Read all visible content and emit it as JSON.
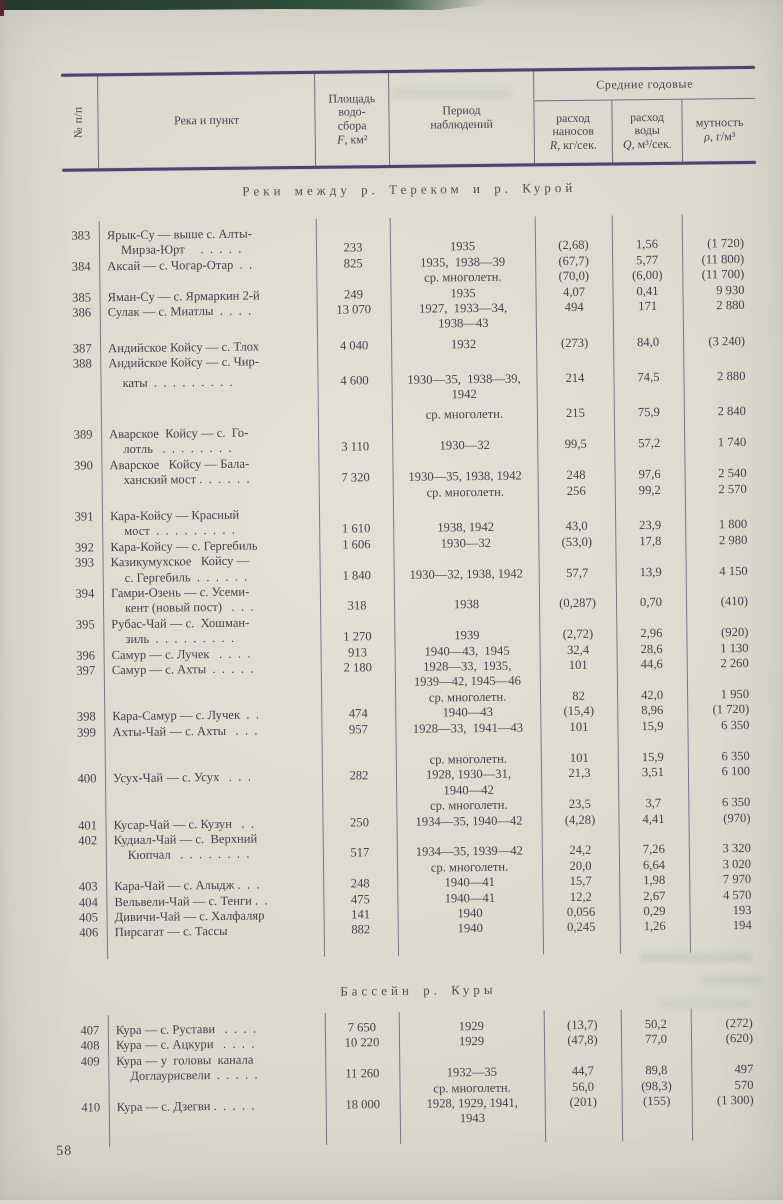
{
  "page": {
    "number": "58"
  },
  "colors": {
    "paper": "#dcdacf",
    "ink": "#45404e",
    "rule": "#4e4173",
    "scan_band": "#2c4a39"
  },
  "table": {
    "header": {
      "col_num": "№ п/п",
      "col_river": "Река и пункт",
      "col_area_lines": [
        "Площадь",
        "водо-",
        "сбора"
      ],
      "col_area_letter": "F",
      "col_area_rest": ", км²",
      "col_period_lines": [
        "Период",
        "наблюдений"
      ],
      "group_label": "Средние годовые",
      "col_r_lines": [
        "расход",
        "наносов"
      ],
      "col_r_letter": "R",
      "col_r_rest": ", кг/сек.",
      "col_q_lines": [
        "расход",
        "воды"
      ],
      "col_q_letter": "Q",
      "col_q_rest": ", м³/сек.",
      "col_m_line": "мутность",
      "col_m_letter": "ρ",
      "col_m_rest": ", г/м³"
    },
    "sections": [
      {
        "heading": "Реки между р. Тереком и р. Курой",
        "lines": [
          {
            "n": "383",
            "name": "Ярык-Су — выше с. Алты-"
          },
          {
            "ind": 1,
            "name": "Мирза-Юрт     .  .  .  .  .",
            "f": "233",
            "p": "1935",
            "r": "(2,68)",
            "q": "1,56",
            "m": "(1 720)"
          },
          {
            "n": "384",
            "name": "Аксай — с. Чогар-Отар  .  .",
            "f": "825",
            "p": "1935,  1938—39",
            "r": "(67,7)",
            "q": "5,77",
            "m": "(11 800)"
          },
          {
            "p": "ср. многолетн.",
            "r": "(70,0)",
            "q": "(6,00)",
            "m": "(11 700)"
          },
          {
            "n": "385",
            "name": "Яман-Су — с. Ярмаркин 2-й",
            "f": "249",
            "p": "1935",
            "r": "4,07",
            "q": "0,41",
            "m": "9 930"
          },
          {
            "n": "386",
            "name": "Сулак — с. Миатлы  .  .  .  .",
            "f": "13 070",
            "p": "1927,  1933—34,",
            "r": "494",
            "q": "171",
            "m": "2 880"
          },
          {
            "p": "1938—43"
          },
          {
            "gap": 5,
            "n": "387",
            "name": "Андийское Койсу — с. Тлох",
            "f": "4 040",
            "p": "1932",
            "r": "(273)",
            "q": "84,0",
            "m": "(3 240)"
          },
          {
            "n": "388",
            "name": "Андийское Койсу — с. Чир-"
          },
          {
            "gap": 4,
            "ind": 1,
            "name": "каты  .  .  .  .  .  .  .  .  .",
            "f": "4 600",
            "p": "1930—35,  1938—39,",
            "r": "214",
            "q": "74,5",
            "m": "2 880"
          },
          {
            "p": "1942"
          },
          {
            "gap": 5,
            "p": "ср. многолетн.",
            "r": "215",
            "q": "75,9",
            "m": "2 840"
          },
          {
            "n": "389",
            "name": "Аварское  Койсу — с.  Го-"
          },
          {
            "ind": 1,
            "name": "лотль   .  .  .  .  .  .  .  .",
            "f": "3 110",
            "p": "1930—32",
            "r": "99,5",
            "q": "57,2",
            "m": "1 740"
          },
          {
            "n": "390",
            "name": "Аварское   Койсу — Бала-"
          },
          {
            "ind": 1,
            "name": "ханский мост .  .  .  .  .  .",
            "f": "7 320",
            "p": "1930—35, 1938, 1942",
            "r": "248",
            "q": "97,6",
            "m": "2 540"
          },
          {
            "p": "ср. многолетн.",
            "r": "256",
            "q": "99,2",
            "m": "2 570"
          },
          {
            "gap": 5,
            "n": "391",
            "name": "Кара-Койсу — Красный"
          },
          {
            "ind": 1,
            "name": "мост  .  .  .  .  .  .  .  .  .",
            "f": "1 610",
            "p": "1938, 1942",
            "r": "43,0",
            "q": "23,9",
            "m": "1 800"
          },
          {
            "n": "392",
            "name": "Кара-Койсу — с. Гергебиль",
            "f": "1 606",
            "p": "1930—32",
            "r": "(53,0)",
            "q": "17,8",
            "m": "2 980"
          },
          {
            "n": "393",
            "name": "Казикумухское   Койсу —"
          },
          {
            "ind": 1,
            "name": "с. Гергебиль  .  .  .  .  .  .",
            "f": "1 840",
            "p": "1930—32, 1938, 1942",
            "r": "57,7",
            "q": "13,9",
            "m": "4 150"
          },
          {
            "n": "394",
            "name": "Гамри-Озень — с. Усеми-"
          },
          {
            "ind": 1,
            "name": "кент (новый пост)   .  .  .",
            "f": "318",
            "p": "1938",
            "r": "(0,287)",
            "q": "0,70",
            "m": "(410)"
          },
          {
            "n": "395",
            "name": "Рубас-Чай — с.  Хошман-"
          },
          {
            "ind": 1,
            "name": "зиль  .  .  .  .  .  .  .  .  .",
            "f": "1 270",
            "p": "1939",
            "r": "(2,72)",
            "q": "2,96",
            "m": "(920)"
          },
          {
            "n": "396",
            "name": "Самур — с. Лучек   .  .  .  .",
            "f": "913",
            "p": "1940—43,  1945",
            "r": "32,4",
            "q": "28,6",
            "m": "1 130"
          },
          {
            "n": "397",
            "name": "Самур — с. Ахты  .  .  .  .  .",
            "f": "2 180",
            "p": "1928—33,  1935,",
            "r": "101",
            "q": "44,6",
            "m": "2 260"
          },
          {
            "p": "1939—42, 1945—46"
          },
          {
            "p": "ср. многолетн.",
            "r": "82",
            "q": "42,0",
            "m": "1 950"
          },
          {
            "n": "398",
            "name": "Кара-Самур — с. Лучек  .  .",
            "f": "474",
            "p": "1940—43",
            "r": "(15,4)",
            "q": "8,96",
            "m": "(1 720)"
          },
          {
            "n": "399",
            "name": "Ахты-Чай — с. Ахты   .  .  .",
            "f": "957",
            "p": "1928—33,  1941—43",
            "r": "101",
            "q": "15,9",
            "m": "6 350"
          },
          {
            "gap": 16,
            "p": "ср. многолетн.",
            "r": "101",
            "q": "15,9",
            "m": "6 350"
          },
          {
            "n": "400",
            "name": "Усух-Чай — с. Усух   .  .  .",
            "f": "282",
            "p": "1928, 1930—31,",
            "r": "21,3",
            "q": "3,51",
            "m": "6 100"
          },
          {
            "p": "1940—42"
          },
          {
            "p": "ср. многолетн.",
            "r": "23,5",
            "q": "3,7",
            "m": "6 350"
          },
          {
            "n": "401",
            "name": "Кусар-Чай — с. Кузун   .  .",
            "f": "250",
            "p": "1934—35, 1940—42",
            "r": "(4,28)",
            "q": "4,41",
            "m": "(970)"
          },
          {
            "n": "402",
            "name": "Кудиал-Чай — с.  Верхний"
          },
          {
            "ind": 1,
            "name": "Кюпчал   .  .  .  .  .  .  .  .",
            "f": "517",
            "p": "1934—35, 1939—42",
            "r": "24,2",
            "q": "7,26",
            "m": "3 320"
          },
          {
            "p": "ср. многолетн.",
            "r": "20,0",
            "q": "6,64",
            "m": "3 020"
          },
          {
            "n": "403",
            "name": "Кара-Чай — с. Алыдж .  .  .",
            "f": "248",
            "p": "1940—41",
            "r": "15,7",
            "q": "1,98",
            "m": "7 970"
          },
          {
            "n": "404",
            "name": "Вельвели-Чай — с. Тенги .  .",
            "f": "475",
            "p": "1940—41",
            "r": "12,2",
            "q": "2,67",
            "m": "4 570"
          },
          {
            "n": "405",
            "name": "Дивичи-Чай — с. Халфаляр",
            "f": "141",
            "p": "1940",
            "r": "0,056",
            "q": "0,29",
            "m": "193"
          },
          {
            "n": "406",
            "name": "Пирсагат — с. Тассы",
            "f": "882",
            "p": "1940",
            "r": "0,245",
            "q": "1,26",
            "m": "194"
          }
        ]
      },
      {
        "heading": "Бассейн р. Куры",
        "lines": [
          {
            "n": "407",
            "name": "Кура — с. Рустави   .  .  .  .",
            "f": "7 650",
            "p": "1929",
            "r": "(13,7)",
            "q": "50,2",
            "m": "(272)"
          },
          {
            "n": "408",
            "name": "Кура — с. Ацкури   .  .  .  .",
            "f": "10 220",
            "p": "1929",
            "r": "(47,8)",
            "q": "77,0",
            "m": "(620)"
          },
          {
            "n": "409",
            "name": "Кура — у  головы  канала"
          },
          {
            "ind": 1,
            "name": "Доглаурисвели  .  .  .  .  .",
            "f": "11 260",
            "p": "1932—35",
            "r": "44,7",
            "q": "89,8",
            "m": "497"
          },
          {
            "p": "ср. многолетн.",
            "r": "56,0",
            "q": "(98,3)",
            "m": "570"
          },
          {
            "n": "410",
            "name": "Кура — с. Дзегви .  .  .  .  .",
            "f": "18 000",
            "p": "1928, 1929, 1941,",
            "r": "(201)",
            "q": "(155)",
            "m": "(1 300)"
          },
          {
            "p": "1943"
          }
        ]
      }
    ]
  }
}
